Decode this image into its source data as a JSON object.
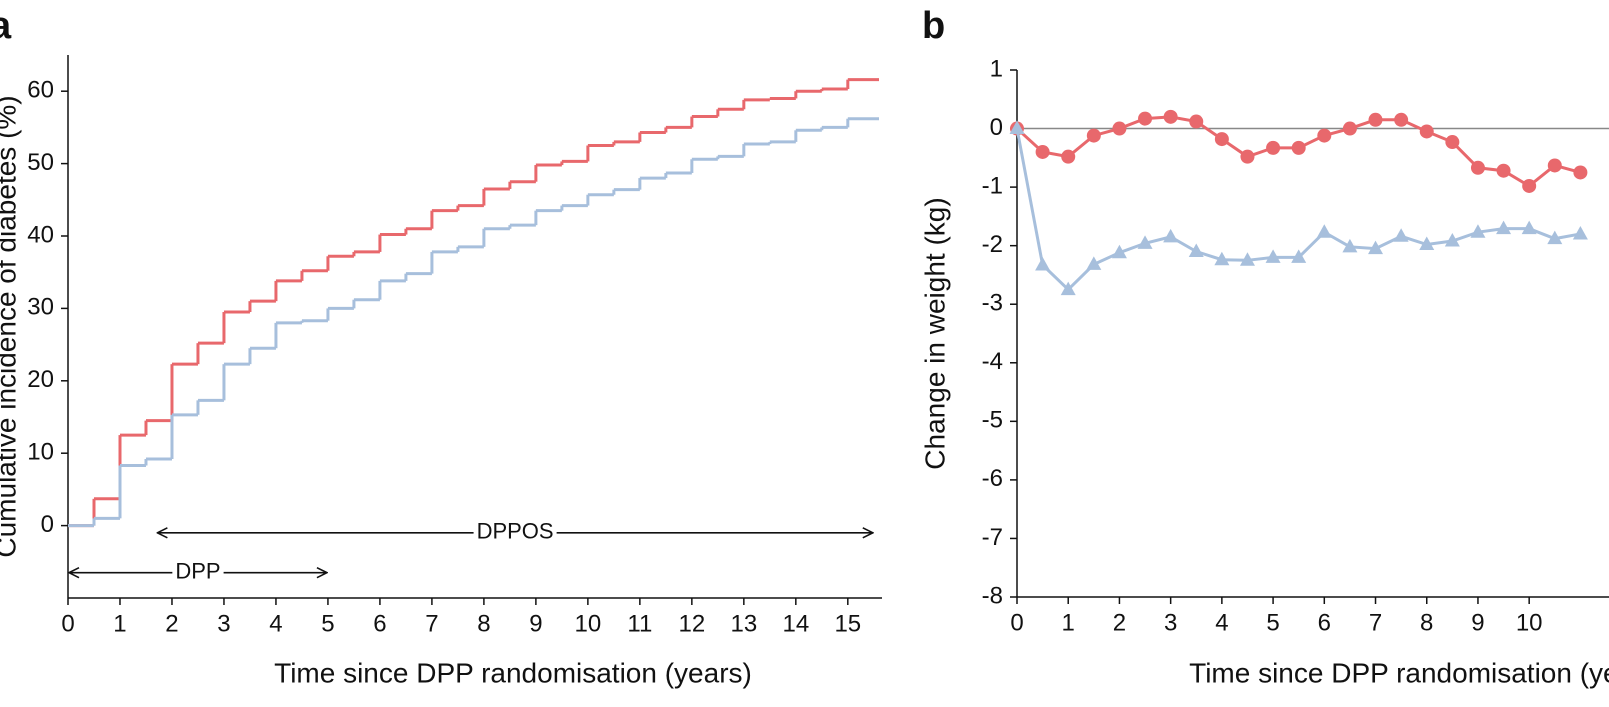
{
  "chart_data": [
    {
      "type": "step",
      "panel": "a",
      "ylabel": "Cumulative incidence of diabetes (%)",
      "xlabel": "Time since DPP randomisation (years)",
      "xlim": [
        0,
        15.6
      ],
      "ylim": [
        -10,
        65
      ],
      "xticks": [
        0,
        1,
        2,
        3,
        4,
        5,
        6,
        7,
        8,
        9,
        10,
        11,
        12,
        13,
        14,
        15
      ],
      "yticks": [
        0,
        10,
        20,
        30,
        40,
        50,
        60
      ],
      "x": [
        0,
        0.5,
        1,
        1.5,
        2,
        2.5,
        3,
        3.5,
        4,
        4.5,
        5,
        5.5,
        6,
        6.5,
        7,
        7.5,
        8,
        8.5,
        9,
        9.5,
        10,
        10.5,
        11,
        11.5,
        12,
        12.5,
        13,
        13.5,
        14,
        14.5,
        15
      ],
      "series": [
        {
          "color": "#e8686c",
          "values": [
            0,
            3.7,
            12.5,
            14.5,
            22.3,
            25.2,
            29.5,
            31,
            33.8,
            35.2,
            37.2,
            37.8,
            40.2,
            41,
            43.5,
            44.2,
            46.5,
            47.5,
            49.8,
            50.3,
            52.5,
            53,
            54.3,
            55,
            56.5,
            57.5,
            58.8,
            59,
            60,
            60.3,
            61.6
          ]
        },
        {
          "color": "#a7bfdc",
          "values": [
            0,
            1,
            8.3,
            9.2,
            15.3,
            17.3,
            22.3,
            24.5,
            28,
            28.3,
            30,
            31.2,
            33.8,
            34.8,
            37.8,
            38.5,
            41,
            41.5,
            43.5,
            44.2,
            45.7,
            46.4,
            48,
            48.7,
            50.6,
            51,
            52.7,
            53,
            54.6,
            55,
            56.2
          ]
        }
      ],
      "annotations": [
        {
          "text": "DPPOS",
          "x": [
            1.7,
            15.5
          ],
          "y": -1
        },
        {
          "text": "DPP",
          "x": [
            0,
            5
          ],
          "y": -6.5
        }
      ]
    },
    {
      "type": "line",
      "panel": "b",
      "ylabel": "Change in weight (kg)",
      "xlabel": "Time since DPP randomisation (years)",
      "xlim": [
        0,
        11.5
      ],
      "ylim": [
        -8,
        1
      ],
      "xticks": [
        0,
        1,
        2,
        3,
        4,
        5,
        6,
        7,
        8,
        9,
        10
      ],
      "yticks": [
        -8,
        -7,
        -6,
        -5,
        -4,
        -3,
        -2,
        -1,
        0,
        1
      ],
      "reference_line": 0,
      "x": [
        0,
        0.5,
        1,
        1.5,
        2,
        2.5,
        3,
        3.5,
        4,
        4.5,
        5,
        5.5,
        6,
        6.5,
        7,
        7.5,
        8,
        8.5,
        9,
        9.5,
        10,
        10.5,
        11
      ],
      "series": [
        {
          "color": "#e8686c",
          "marker": "circle",
          "values": [
            0,
            -0.4,
            -0.48,
            -0.12,
            0,
            0.17,
            0.2,
            0.12,
            -0.18,
            -0.48,
            -0.33,
            -0.33,
            -0.12,
            0,
            0.15,
            0.15,
            -0.05,
            -0.23,
            -0.67,
            -0.72,
            -0.98,
            -0.63,
            -0.75
          ]
        },
        {
          "color": "#a7bfdc",
          "marker": "triangle",
          "values": [
            0,
            -2.33,
            -2.75,
            -2.32,
            -2.12,
            -1.96,
            -1.85,
            -2.1,
            -2.24,
            -2.25,
            -2.2,
            -2.2,
            -1.77,
            -2.02,
            -2.05,
            -1.84,
            -1.98,
            -1.92,
            -1.77,
            -1.71,
            -1.71,
            -1.88,
            -1.8
          ]
        }
      ]
    }
  ]
}
